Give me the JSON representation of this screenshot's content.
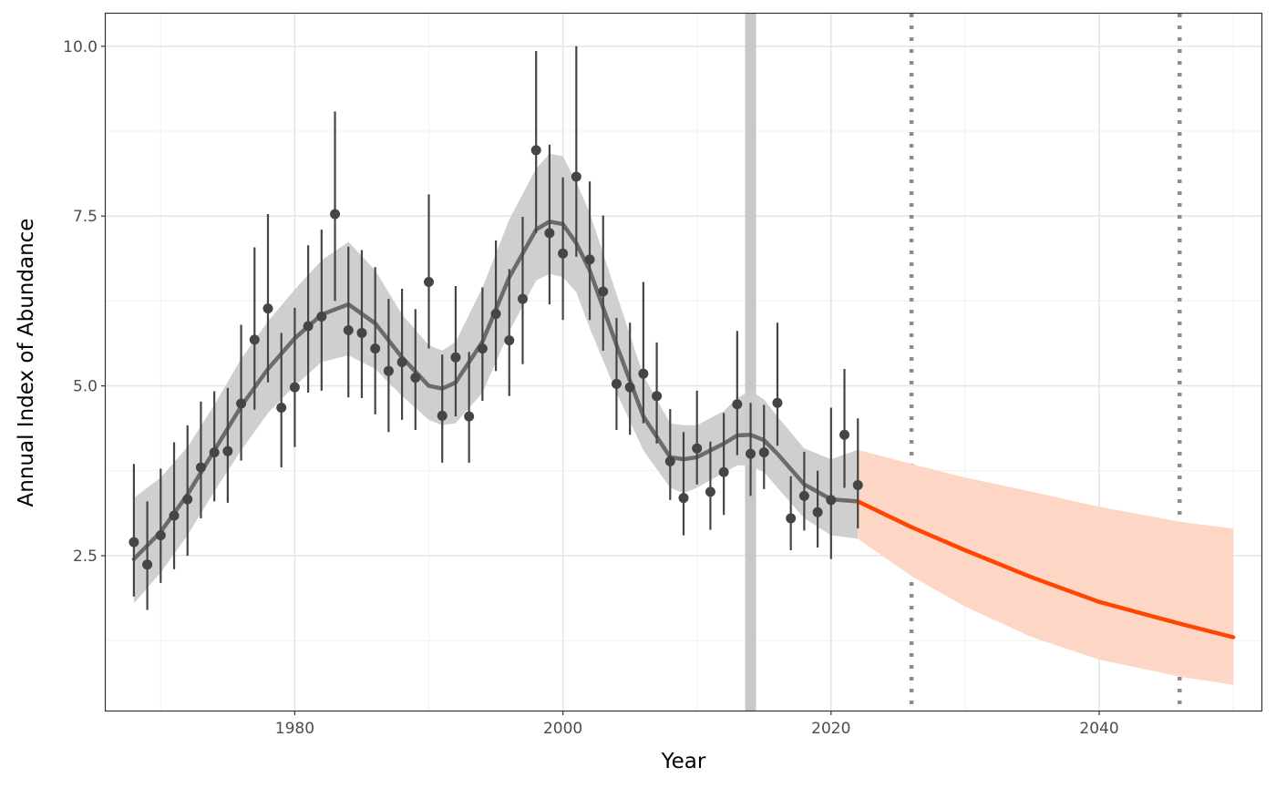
{
  "chart_data": {
    "type": "line",
    "title": "",
    "xlabel": "Year",
    "ylabel": "Annual Index of Abundance",
    "xlim": [
      1965.9,
      2052.1
    ],
    "ylim": [
      0.22,
      10.48
    ],
    "grid": true,
    "x_ticks": [
      1980,
      2000,
      2020,
      2040
    ],
    "x_tick_labels": [
      "1980",
      "2000",
      "2020",
      "2040"
    ],
    "y_ticks": [
      2.5,
      5.0,
      7.5,
      10.0
    ],
    "y_tick_labels": [
      "2.5",
      "5.0",
      "7.5",
      "10.0"
    ],
    "observations": {
      "x": [
        1968,
        1969,
        1970,
        1971,
        1972,
        1973,
        1974,
        1975,
        1976,
        1977,
        1978,
        1979,
        1980,
        1981,
        1982,
        1983,
        1984,
        1985,
        1986,
        1987,
        1988,
        1989,
        1990,
        1991,
        1992,
        1993,
        1994,
        1995,
        1996,
        1997,
        1998,
        1999,
        2000,
        2001,
        2002,
        2003,
        2004,
        2005,
        2006,
        2007,
        2008,
        2009,
        2010,
        2011,
        2012,
        2013,
        2014,
        2015,
        2016,
        2017,
        2018,
        2019,
        2020,
        2021,
        2022
      ],
      "y": [
        2.7,
        2.37,
        2.8,
        3.09,
        3.33,
        3.8,
        4.02,
        4.04,
        4.74,
        5.68,
        6.14,
        4.68,
        4.98,
        5.88,
        6.02,
        7.53,
        5.82,
        5.78,
        5.55,
        5.22,
        5.35,
        5.12,
        6.53,
        4.56,
        5.42,
        4.55,
        5.55,
        6.06,
        5.67,
        6.28,
        8.47,
        7.25,
        6.95,
        8.08,
        6.86,
        6.39,
        5.03,
        4.98,
        5.18,
        4.85,
        3.89,
        3.35,
        4.08,
        3.44,
        3.73,
        4.73,
        4.0,
        4.02,
        4.75,
        3.05,
        3.38,
        3.14,
        3.32,
        4.28,
        3.54
      ],
      "lower": [
        1.9,
        1.7,
        2.1,
        2.3,
        2.5,
        3.05,
        3.3,
        3.28,
        3.9,
        4.65,
        5.05,
        3.8,
        4.1,
        4.9,
        4.93,
        6.25,
        4.83,
        4.82,
        4.58,
        4.32,
        4.5,
        4.35,
        5.55,
        3.87,
        4.55,
        3.87,
        4.78,
        5.22,
        4.85,
        5.32,
        7.25,
        6.2,
        5.97,
        6.9,
        5.97,
        5.52,
        4.35,
        4.28,
        4.45,
        4.15,
        3.32,
        2.8,
        3.55,
        2.88,
        3.1,
        3.98,
        3.38,
        3.48,
        4.12,
        2.58,
        2.87,
        2.62,
        2.45,
        3.5,
        2.9
      ],
      "upper": [
        3.85,
        3.3,
        3.78,
        4.17,
        4.42,
        4.77,
        4.92,
        4.97,
        5.9,
        7.04,
        7.53,
        5.78,
        6.15,
        7.07,
        7.3,
        9.04,
        7.05,
        7.0,
        6.75,
        6.28,
        6.43,
        6.13,
        7.82,
        5.46,
        6.47,
        5.5,
        6.45,
        7.14,
        6.72,
        7.49,
        9.93,
        8.55,
        8.07,
        10.0,
        8.01,
        7.51,
        6.0,
        5.93,
        6.53,
        5.64,
        4.66,
        4.32,
        4.93,
        4.18,
        4.6,
        5.81,
        4.75,
        4.72,
        5.93,
        3.67,
        4.03,
        3.75,
        4.68,
        5.25,
        4.52
      ],
      "color": "#454545"
    },
    "model_fit": {
      "x": [
        1968,
        1970,
        1972,
        1974,
        1976,
        1978,
        1980,
        1982,
        1984,
        1986,
        1988,
        1990,
        1991,
        1992,
        1994,
        1996,
        1998,
        1999,
        2000,
        2001,
        2002,
        2004,
        2006,
        2008,
        2009,
        2010,
        2012,
        2013,
        2014,
        2015,
        2016,
        2018,
        2020,
        2022
      ],
      "y": [
        2.45,
        2.85,
        3.4,
        4.05,
        4.7,
        5.25,
        5.7,
        6.05,
        6.2,
        5.92,
        5.42,
        5.0,
        4.96,
        5.05,
        5.65,
        6.6,
        7.3,
        7.42,
        7.38,
        7.1,
        6.7,
        5.6,
        4.55,
        3.95,
        3.92,
        3.95,
        4.15,
        4.27,
        4.28,
        4.2,
        4.0,
        3.55,
        3.33,
        3.3
      ],
      "lower": [
        1.8,
        2.25,
        2.8,
        3.45,
        4.05,
        4.6,
        5.0,
        5.35,
        5.45,
        5.25,
        4.85,
        4.5,
        4.42,
        4.45,
        4.9,
        5.8,
        6.55,
        6.65,
        6.6,
        6.38,
        5.85,
        4.9,
        4.05,
        3.5,
        3.42,
        3.5,
        3.72,
        3.83,
        3.82,
        3.73,
        3.5,
        3.05,
        2.8,
        2.75
      ],
      "upper": [
        3.35,
        3.65,
        4.1,
        4.72,
        5.4,
        5.95,
        6.42,
        6.85,
        7.12,
        6.7,
        6.05,
        5.6,
        5.52,
        5.65,
        6.45,
        7.45,
        8.2,
        8.42,
        8.38,
        8.0,
        7.55,
        6.35,
        5.15,
        4.45,
        4.42,
        4.42,
        4.63,
        4.82,
        4.93,
        4.8,
        4.55,
        4.08,
        3.92,
        4.06
      ],
      "line_color": "#6b6b6b",
      "band_color": "#cccccc"
    },
    "projection": {
      "x": [
        2022,
        2026,
        2030,
        2035,
        2040,
        2046,
        2050
      ],
      "y": [
        3.3,
        2.92,
        2.58,
        2.18,
        1.82,
        1.5,
        1.3
      ],
      "lower": [
        2.75,
        2.2,
        1.75,
        1.3,
        0.97,
        0.72,
        0.6
      ],
      "upper": [
        4.06,
        3.85,
        3.65,
        3.44,
        3.22,
        3.0,
        2.9
      ],
      "line_color": "#ff4500",
      "band_color": "#fdd6c6"
    },
    "highlight_year": 2014,
    "highlight_color": "#c8c8c8",
    "reference_years": [
      2026,
      2046
    ],
    "reference_color": "#8c8c8c"
  }
}
